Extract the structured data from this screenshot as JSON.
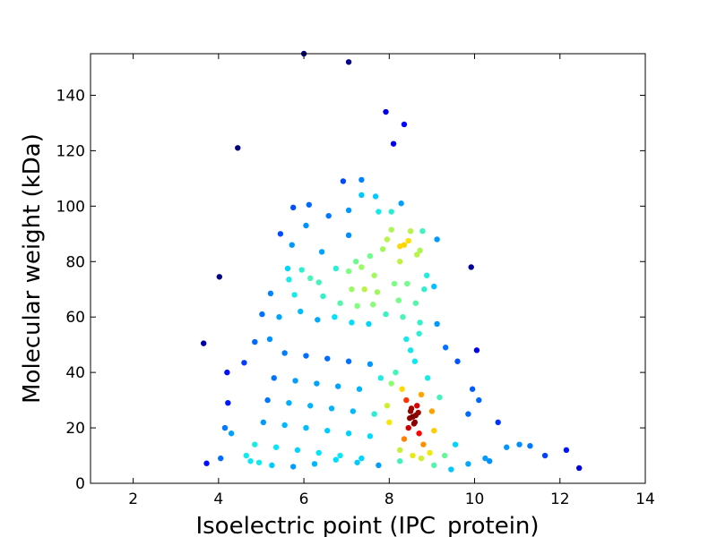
{
  "chart_data": {
    "type": "scatter",
    "title": "",
    "xlabel": "Isoelectric point (IPC_protein)",
    "ylabel": "Molecular weight (kDa)",
    "xlim": [
      1,
      14
    ],
    "ylim": [
      0,
      155
    ],
    "x_ticks": [
      2,
      4,
      6,
      8,
      10,
      12,
      14
    ],
    "y_ticks": [
      0,
      20,
      40,
      60,
      80,
      100,
      120,
      140
    ],
    "grid": false,
    "legend": "none",
    "colormap": "jet (point density)",
    "colormap_colors": [
      "#00007f",
      "#0000ff",
      "#007fff",
      "#00e5ff",
      "#7fff7f",
      "#ffe500",
      "#ff7f00",
      "#ff0000",
      "#7f0000"
    ],
    "points": [
      [
        3.65,
        50.5
      ],
      [
        4.02,
        74.5
      ],
      [
        4.45,
        121
      ],
      [
        7.05,
        152
      ],
      [
        6.0,
        155
      ],
      [
        7.92,
        134
      ],
      [
        8.35,
        129.5
      ],
      [
        8.1,
        122.5
      ],
      [
        6.92,
        109
      ],
      [
        7.35,
        109.5
      ],
      [
        7.68,
        103.5
      ],
      [
        8.28,
        101
      ],
      [
        7.35,
        104
      ],
      [
        6.12,
        100.5
      ],
      [
        5.75,
        99.5
      ],
      [
        7.05,
        98.5
      ],
      [
        7.75,
        98
      ],
      [
        8.05,
        98
      ],
      [
        6.58,
        96.5
      ],
      [
        6.05,
        93
      ],
      [
        8.05,
        91.5
      ],
      [
        8.78,
        91
      ],
      [
        8.5,
        91
      ],
      [
        7.05,
        89.5
      ],
      [
        5.45,
        90
      ],
      [
        9.12,
        88
      ],
      [
        7.95,
        88
      ],
      [
        8.45,
        87.5
      ],
      [
        8.35,
        86
      ],
      [
        5.72,
        86
      ],
      [
        7.85,
        84.5
      ],
      [
        8.25,
        85.5
      ],
      [
        6.42,
        83.5
      ],
      [
        8.72,
        84
      ],
      [
        8.65,
        82.5
      ],
      [
        7.55,
        82
      ],
      [
        7.22,
        80
      ],
      [
        8.25,
        80
      ],
      [
        9.92,
        78
      ],
      [
        5.62,
        77.5
      ],
      [
        6.75,
        77.5
      ],
      [
        7.35,
        78
      ],
      [
        7.05,
        76.5
      ],
      [
        5.95,
        77
      ],
      [
        6.15,
        74
      ],
      [
        7.65,
        75
      ],
      [
        8.88,
        75
      ],
      [
        5.65,
        73.5
      ],
      [
        6.35,
        72.5
      ],
      [
        7.12,
        70
      ],
      [
        7.42,
        70
      ],
      [
        7.72,
        69
      ],
      [
        8.12,
        72
      ],
      [
        8.42,
        72
      ],
      [
        8.82,
        70
      ],
      [
        9.05,
        71
      ],
      [
        5.22,
        68.5
      ],
      [
        5.78,
        68
      ],
      [
        6.45,
        67.5
      ],
      [
        6.85,
        65
      ],
      [
        7.25,
        64
      ],
      [
        7.62,
        64.5
      ],
      [
        8.22,
        66
      ],
      [
        8.62,
        65
      ],
      [
        5.02,
        61
      ],
      [
        5.42,
        60
      ],
      [
        5.92,
        62
      ],
      [
        6.32,
        59
      ],
      [
        6.72,
        60
      ],
      [
        7.12,
        58
      ],
      [
        7.52,
        57.5
      ],
      [
        7.92,
        61
      ],
      [
        8.32,
        60
      ],
      [
        8.72,
        58
      ],
      [
        9.12,
        57.5
      ],
      [
        3.72,
        7.2
      ],
      [
        4.05,
        9
      ],
      [
        4.3,
        18
      ],
      [
        4.6,
        43.5
      ],
      [
        4.85,
        51
      ],
      [
        4.22,
        29
      ],
      [
        4.2,
        40
      ],
      [
        4.15,
        20
      ],
      [
        12.45,
        5.5
      ],
      [
        12.15,
        12
      ],
      [
        11.65,
        10
      ],
      [
        11.3,
        13.5
      ],
      [
        11.05,
        14
      ],
      [
        10.75,
        13
      ],
      [
        10.55,
        22
      ],
      [
        10.35,
        8
      ],
      [
        10.05,
        48
      ],
      [
        10.1,
        30
      ],
      [
        9.95,
        34
      ],
      [
        9.85,
        25
      ],
      [
        9.6,
        44
      ],
      [
        9.55,
        14
      ],
      [
        9.3,
        10
      ],
      [
        9.18,
        31
      ],
      [
        9.32,
        49
      ],
      [
        5.2,
        52
      ],
      [
        5.55,
        47
      ],
      [
        6.05,
        46
      ],
      [
        6.55,
        45
      ],
      [
        7.05,
        44
      ],
      [
        7.55,
        43
      ],
      [
        5.3,
        38
      ],
      [
        5.8,
        37
      ],
      [
        6.3,
        36
      ],
      [
        6.8,
        35
      ],
      [
        7.3,
        34
      ],
      [
        7.8,
        38
      ],
      [
        5.15,
        30
      ],
      [
        5.65,
        29
      ],
      [
        6.15,
        28
      ],
      [
        6.65,
        27
      ],
      [
        7.15,
        26
      ],
      [
        7.65,
        25
      ],
      [
        5.05,
        22
      ],
      [
        5.55,
        21
      ],
      [
        6.05,
        20
      ],
      [
        6.55,
        19
      ],
      [
        7.05,
        18
      ],
      [
        7.55,
        17
      ],
      [
        4.85,
        14
      ],
      [
        5.35,
        13
      ],
      [
        5.85,
        12
      ],
      [
        6.35,
        11
      ],
      [
        6.85,
        10
      ],
      [
        7.35,
        9
      ],
      [
        4.65,
        10
      ],
      [
        4.75,
        8
      ],
      [
        4.95,
        7.5
      ],
      [
        5.25,
        6.5
      ],
      [
        5.75,
        6
      ],
      [
        6.25,
        7
      ],
      [
        6.75,
        8.5
      ],
      [
        7.25,
        7.5
      ],
      [
        7.75,
        6.5
      ],
      [
        8.25,
        8
      ],
      [
        8.75,
        9
      ],
      [
        9.05,
        6.5
      ],
      [
        9.45,
        5
      ],
      [
        9.85,
        7
      ],
      [
        10.25,
        9
      ],
      [
        8.55,
        24
      ],
      [
        8.6,
        22
      ],
      [
        8.5,
        26
      ],
      [
        8.45,
        20
      ],
      [
        8.65,
        28
      ],
      [
        8.7,
        18
      ],
      [
        8.4,
        30
      ],
      [
        8.35,
        16
      ],
      [
        8.75,
        32
      ],
      [
        8.3,
        34
      ],
      [
        8.8,
        14
      ],
      [
        8.25,
        12
      ],
      [
        8.9,
        38
      ],
      [
        8.15,
        40
      ],
      [
        8.95,
        11
      ],
      [
        8.05,
        36
      ],
      [
        9.0,
        26
      ],
      [
        8.0,
        22
      ],
      [
        9.05,
        19
      ],
      [
        7.95,
        28
      ],
      [
        8.6,
        44
      ],
      [
        8.5,
        48
      ],
      [
        8.4,
        52
      ],
      [
        8.7,
        54
      ],
      [
        8.55,
        10
      ],
      [
        8.62,
        24.5
      ],
      [
        8.48,
        23.5
      ],
      [
        8.58,
        21.5
      ],
      [
        8.52,
        27
      ],
      [
        8.68,
        25.5
      ]
    ]
  }
}
